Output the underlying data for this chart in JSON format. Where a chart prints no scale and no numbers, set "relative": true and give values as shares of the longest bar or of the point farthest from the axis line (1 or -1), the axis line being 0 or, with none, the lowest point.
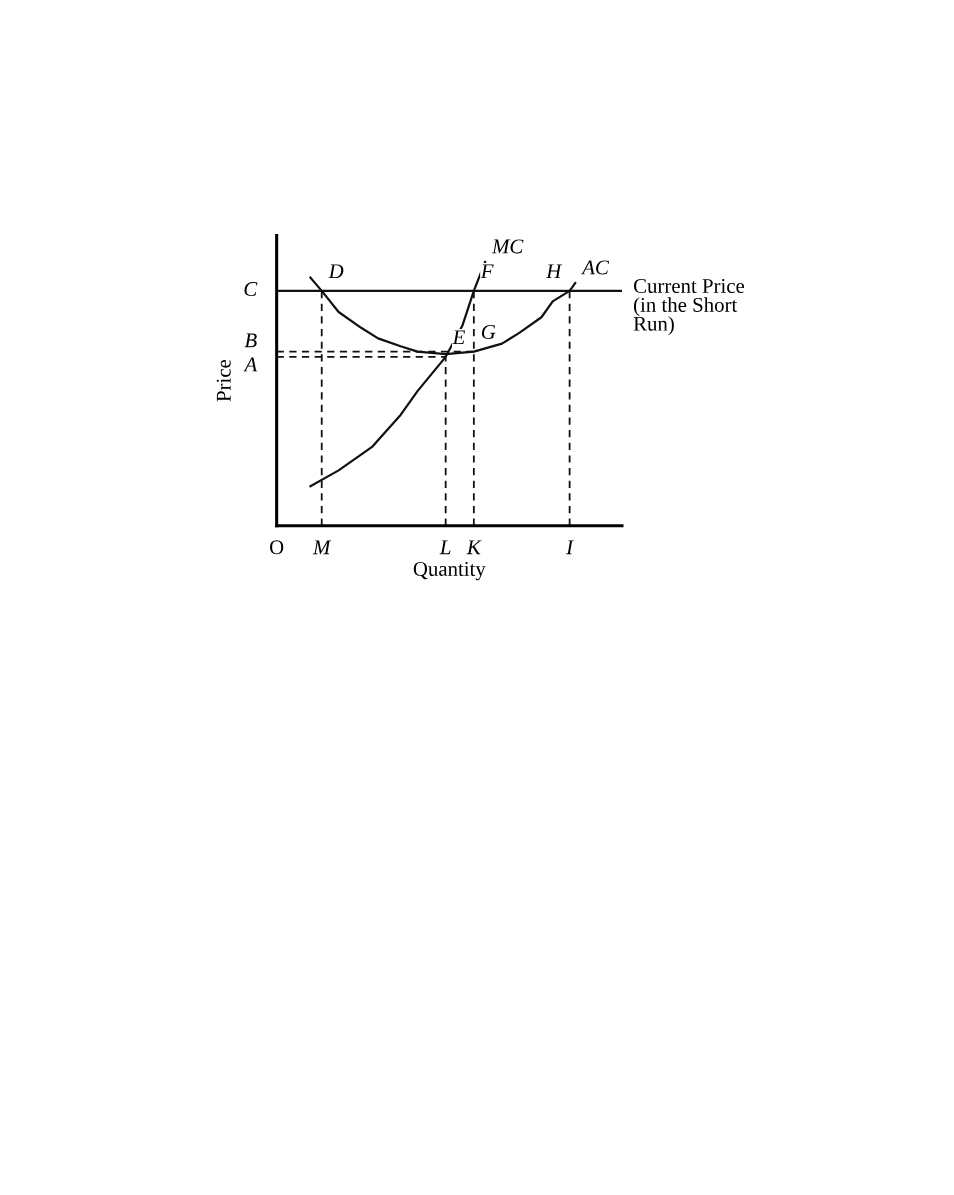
{
  "chart_data": {
    "type": "line",
    "relative": true,
    "xlabel": "Quantity",
    "ylabel": "Price",
    "categories": [
      "O",
      null,
      null,
      null,
      null,
      null,
      null,
      null,
      "M",
      null,
      null,
      null,
      null,
      null,
      null,
      null,
      null,
      null,
      null,
      null,
      null,
      null,
      null,
      null,
      null,
      null,
      null,
      null,
      null,
      null,
      "L",
      null,
      null,
      null,
      null,
      "K",
      null,
      null,
      null,
      null,
      null,
      null,
      null,
      null,
      null,
      null,
      null,
      null,
      null,
      null,
      null,
      null,
      "I",
      null,
      null,
      null,
      null,
      null,
      null,
      null,
      null,
      null
    ],
    "series": [
      {
        "name": "MC",
        "color": "#111111",
        "values": [
          null,
          null,
          null,
          null,
          null,
          null,
          0.15,
          null,
          null,
          null,
          null,
          0.21,
          null,
          null,
          null,
          null,
          null,
          0.3,
          null,
          null,
          null,
          null,
          0.42,
          null,
          null,
          0.51,
          null,
          null,
          null,
          null,
          0.64,
          null,
          null,
          0.76,
          null,
          0.89,
          null,
          1.0,
          null,
          null,
          null,
          null,
          null,
          null,
          null,
          null,
          null,
          null,
          null,
          null,
          null,
          null,
          null,
          null,
          null,
          null,
          null,
          null,
          null,
          null,
          null,
          null
        ]
      },
      {
        "name": "AC",
        "color": "#111111",
        "values": [
          null,
          null,
          null,
          null,
          null,
          null,
          0.94,
          null,
          0.89,
          null,
          null,
          0.81,
          null,
          null,
          null,
          0.75,
          null,
          null,
          0.71,
          null,
          null,
          null,
          0.68,
          null,
          null,
          0.66,
          null,
          null,
          null,
          null,
          0.65,
          null,
          null,
          null,
          null,
          0.66,
          null,
          null,
          null,
          null,
          0.69,
          null,
          null,
          0.73,
          null,
          null,
          null,
          0.79,
          null,
          0.85,
          null,
          null,
          0.89,
          0.92,
          null,
          null,
          null,
          null,
          null,
          null,
          null,
          null
        ]
      },
      {
        "type": "line",
        "line_style": "dashed",
        "color": "#111111",
        "x": [
          "M",
          "M"
        ],
        "values": [
          0,
          0.89
        ]
      },
      {
        "type": "line",
        "line_style": "dashed",
        "color": "#111111",
        "x": [
          "L",
          "L"
        ],
        "values": [
          0,
          0.64
        ]
      },
      {
        "type": "line",
        "line_style": "dashed",
        "color": "#111111",
        "x": [
          "K",
          "K"
        ],
        "values": [
          0,
          0.89
        ]
      },
      {
        "type": "line",
        "line_style": "dashed",
        "color": "#111111",
        "x": [
          "I",
          "I"
        ],
        "values": [
          0,
          0.89
        ]
      },
      {
        "type": "line",
        "line_style": "dashed",
        "color": "#111111",
        "x": [
          "O",
          "K"
        ],
        "values": [
          0.66,
          0.66
        ]
      },
      {
        "type": "line",
        "line_style": "dashed",
        "color": "#111111",
        "x": [
          "O",
          "L"
        ],
        "values": [
          0.64,
          0.64
        ]
      }
    ],
    "ref_lines": [
      {
        "axis": "y",
        "value": 0.89,
        "label": "Current Price\n(in the Short\nRun)",
        "color": "#111111",
        "line_style": "solid"
      }
    ],
    "annotations": [
      "C",
      "B",
      "A",
      {
        "text": "D",
        "x": "M",
        "y": 0.89
      },
      {
        "text": "F",
        "x": "K",
        "y": 0.89
      },
      {
        "text": "H",
        "x": "I",
        "y": 0.89
      },
      {
        "text": "G",
        "x": "K",
        "y": 0.66
      },
      {
        "text": "E",
        "x": "L",
        "y": 0.64
      }
    ],
    "grid": false,
    "legend": false,
    "marker": "none",
    "line_style": "solid"
  }
}
